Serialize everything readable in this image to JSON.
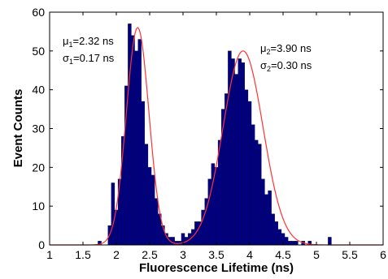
{
  "chart_data": {
    "type": "bar",
    "subtype": "histogram-with-gaussian-fits",
    "xlabel": "Fluorescence Lifetime (ns)",
    "ylabel": "Event Counts",
    "xlim": [
      1,
      6
    ],
    "ylim": [
      0,
      60
    ],
    "x_ticks": [
      "1",
      "1.5",
      "2",
      "2.5",
      "3",
      "3.5",
      "4",
      "4.5",
      "5",
      "5.5",
      "6"
    ],
    "y_ticks": [
      "0",
      "10",
      "20",
      "30",
      "40",
      "50",
      "60"
    ],
    "grid": false,
    "bin_width": 0.05,
    "bar_color": "#000080",
    "fit_color": "#ff3333",
    "bins": [
      {
        "x": 1.75,
        "count": 1
      },
      {
        "x": 1.8,
        "count": 0
      },
      {
        "x": 1.85,
        "count": 0
      },
      {
        "x": 1.9,
        "count": 5
      },
      {
        "x": 1.95,
        "count": 16
      },
      {
        "x": 2.0,
        "count": 9
      },
      {
        "x": 2.05,
        "count": 17
      },
      {
        "x": 2.1,
        "count": 28
      },
      {
        "x": 2.15,
        "count": 41
      },
      {
        "x": 2.2,
        "count": 57
      },
      {
        "x": 2.25,
        "count": 54
      },
      {
        "x": 2.3,
        "count": 50
      },
      {
        "x": 2.35,
        "count": 53
      },
      {
        "x": 2.4,
        "count": 37
      },
      {
        "x": 2.45,
        "count": 26
      },
      {
        "x": 2.5,
        "count": 20
      },
      {
        "x": 2.55,
        "count": 18
      },
      {
        "x": 2.6,
        "count": 12
      },
      {
        "x": 2.65,
        "count": 8
      },
      {
        "x": 2.7,
        "count": 5
      },
      {
        "x": 2.75,
        "count": 3
      },
      {
        "x": 2.8,
        "count": 2
      },
      {
        "x": 2.85,
        "count": 2
      },
      {
        "x": 2.9,
        "count": 1
      },
      {
        "x": 2.95,
        "count": 1
      },
      {
        "x": 3.0,
        "count": 3
      },
      {
        "x": 3.05,
        "count": 2
      },
      {
        "x": 3.1,
        "count": 3
      },
      {
        "x": 3.15,
        "count": 4
      },
      {
        "x": 3.2,
        "count": 6
      },
      {
        "x": 3.25,
        "count": 6
      },
      {
        "x": 3.3,
        "count": 9
      },
      {
        "x": 3.35,
        "count": 12
      },
      {
        "x": 3.4,
        "count": 17
      },
      {
        "x": 3.45,
        "count": 21
      },
      {
        "x": 3.5,
        "count": 20
      },
      {
        "x": 3.55,
        "count": 27
      },
      {
        "x": 3.6,
        "count": 35
      },
      {
        "x": 3.65,
        "count": 39
      },
      {
        "x": 3.7,
        "count": 50
      },
      {
        "x": 3.75,
        "count": 48
      },
      {
        "x": 3.8,
        "count": 44
      },
      {
        "x": 3.85,
        "count": 48
      },
      {
        "x": 3.9,
        "count": 47
      },
      {
        "x": 3.95,
        "count": 40
      },
      {
        "x": 4.0,
        "count": 37
      },
      {
        "x": 4.05,
        "count": 31
      },
      {
        "x": 4.1,
        "count": 27
      },
      {
        "x": 4.15,
        "count": 26
      },
      {
        "x": 4.2,
        "count": 17
      },
      {
        "x": 4.25,
        "count": 13
      },
      {
        "x": 4.3,
        "count": 14
      },
      {
        "x": 4.35,
        "count": 8
      },
      {
        "x": 4.4,
        "count": 6
      },
      {
        "x": 4.45,
        "count": 4
      },
      {
        "x": 4.5,
        "count": 3
      },
      {
        "x": 4.55,
        "count": 2
      },
      {
        "x": 4.6,
        "count": 1
      },
      {
        "x": 4.65,
        "count": 1
      },
      {
        "x": 4.7,
        "count": 1
      },
      {
        "x": 4.75,
        "count": 0
      },
      {
        "x": 4.8,
        "count": 1
      },
      {
        "x": 4.85,
        "count": 0
      },
      {
        "x": 4.9,
        "count": 1
      },
      {
        "x": 4.95,
        "count": 0
      },
      {
        "x": 5.0,
        "count": 0
      },
      {
        "x": 5.05,
        "count": 0
      },
      {
        "x": 5.1,
        "count": 0
      },
      {
        "x": 5.15,
        "count": 0
      },
      {
        "x": 5.2,
        "count": 2
      }
    ],
    "fits": [
      {
        "mu": 2.32,
        "sigma": 0.17,
        "peak": 56
      },
      {
        "mu": 3.9,
        "sigma": 0.3,
        "peak": 50
      }
    ],
    "annotations": [
      {
        "mu_label": "2.32 ns",
        "sigma_label": "0.17 ns",
        "index": "1",
        "mu_sep": "=",
        "sigma_sep": "="
      },
      {
        "mu_label": "3.90 ns",
        "sigma_label": "0.30 ns",
        "index": "2",
        "mu_sep": "=",
        "sigma_sep": "="
      }
    ]
  }
}
